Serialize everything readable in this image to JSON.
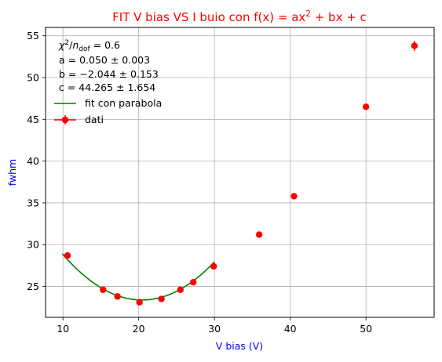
{
  "chart_data": {
    "type": "scatter",
    "title": {
      "prefix": "FIT  V bias VS I buio con f(x) = ax",
      "sup": "2",
      "suffix": " + bx + c",
      "color": "#ff0000"
    },
    "xlabel": "V bias (V)",
    "ylabel": "fwhm",
    "axis_label_color": "#0000ff",
    "xlim": [
      7.7,
      59
    ],
    "ylim": [
      21.3,
      56
    ],
    "xticks": [
      10,
      20,
      30,
      40,
      50
    ],
    "yticks": [
      25,
      30,
      35,
      40,
      45,
      50,
      55
    ],
    "grid": true,
    "annotations": {
      "chi2": {
        "chi": "χ",
        "sup": "2",
        "slash": "/",
        "n": "n",
        "sub": "dof",
        "rest": " = 0.6"
      },
      "a": "a = 0.050 ± 0.003",
      "b": "b = −2.044 ± 0.153",
      "c": "c = 44.265 ± 1.654"
    },
    "legend": {
      "placement": "upper-left",
      "entries": [
        {
          "label": "fit con parabola",
          "kind": "line",
          "color": "#008000"
        },
        {
          "label": "dati",
          "kind": "errorbar",
          "color": "#ff0000"
        }
      ]
    },
    "series": [
      {
        "name": "dati",
        "kind": "scatter-errorbar",
        "color": "#ff0000",
        "points": [
          {
            "x": 10.6,
            "y": 28.7,
            "yerr": 0.2
          },
          {
            "x": 15.3,
            "y": 24.6,
            "yerr": 0.2
          },
          {
            "x": 17.2,
            "y": 23.8,
            "yerr": 0.2
          },
          {
            "x": 20.1,
            "y": 23.1,
            "yerr": 0.2
          },
          {
            "x": 23.0,
            "y": 23.5,
            "yerr": 0.2
          },
          {
            "x": 25.5,
            "y": 24.6,
            "yerr": 0.2
          },
          {
            "x": 27.2,
            "y": 25.5,
            "yerr": 0.2
          },
          {
            "x": 29.9,
            "y": 27.4,
            "yerr": 0.2
          },
          {
            "x": 35.9,
            "y": 31.2,
            "yerr": 0.2
          },
          {
            "x": 40.5,
            "y": 35.8,
            "yerr": 0.2
          },
          {
            "x": 50.0,
            "y": 46.5,
            "yerr": 0.3
          },
          {
            "x": 56.4,
            "y": 53.8,
            "yerr": 0.6
          }
        ]
      },
      {
        "name": "fit con parabola",
        "kind": "curve",
        "color": "#008000",
        "coefficients": {
          "a": 0.05,
          "b": -2.044,
          "c": 44.265
        },
        "x_range": [
          9.9,
          30.0
        ]
      }
    ]
  }
}
